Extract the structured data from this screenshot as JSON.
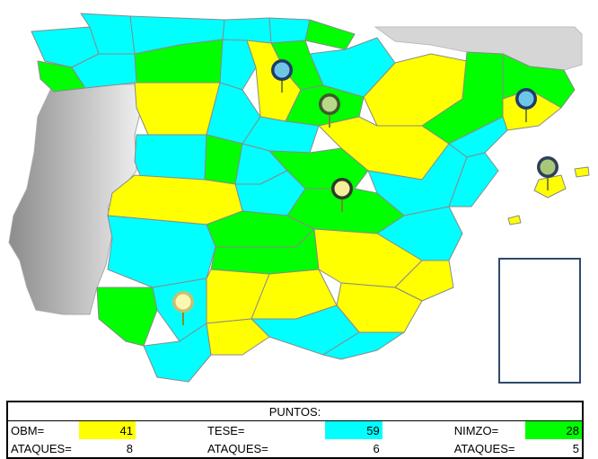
{
  "colors": {
    "obm": "#ffff00",
    "tese": "#00ffff",
    "nimzo": "#00ff00"
  },
  "markers": [
    "blue-pin",
    "green-pin",
    "blue-pin",
    "yellow-pin",
    "green-pin",
    "yellow-pin"
  ],
  "scoreboard": {
    "title": "PUNTOS:",
    "obm_label": "OBM=",
    "obm_points": "41",
    "obm_attacks_label": "ATAQUES=",
    "obm_attacks": "8",
    "tese_label": "TESE=",
    "tese_points": "59",
    "tese_attacks_label": "ATAQUES=",
    "tese_attacks": "6",
    "nimzo_label": "NIMZO=",
    "nimzo_points": "28",
    "nimzo_attacks_label": "ATAQUES=",
    "nimzo_attacks": "5"
  }
}
